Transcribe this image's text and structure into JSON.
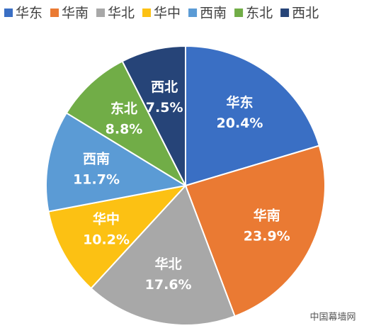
{
  "chart_data": {
    "type": "pie",
    "categories": [
      "华东",
      "华南",
      "华北",
      "华中",
      "西南",
      "东北",
      "西北"
    ],
    "values": [
      20.4,
      23.9,
      17.6,
      10.2,
      11.7,
      8.8,
      7.5
    ],
    "value_labels": [
      "20.4%",
      "23.9%",
      "17.6%",
      "10.2%",
      "11.7%",
      "8.8%",
      "7.5%"
    ],
    "colors": [
      "#3a6fc4",
      "#ea7a33",
      "#a8a8a8",
      "#fcc113",
      "#5b9bd5",
      "#71ad47",
      "#264478"
    ],
    "legend": "top",
    "watermark": "中国幕墙网"
  }
}
